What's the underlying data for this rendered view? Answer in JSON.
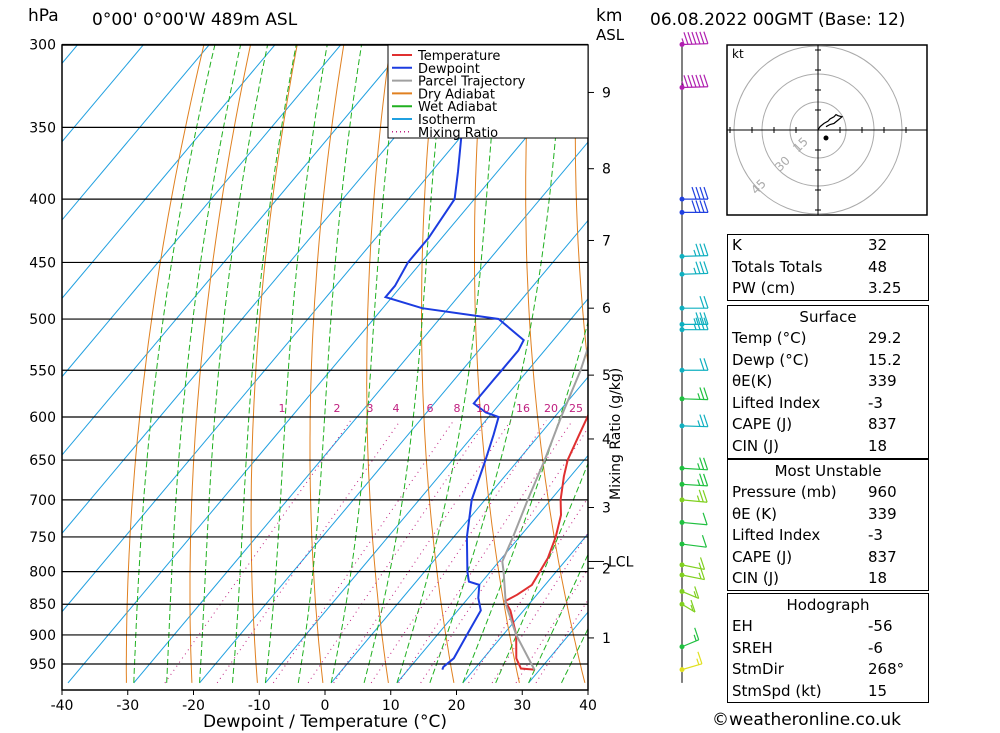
{
  "header": {
    "unit_hpa": "hPa",
    "location": "0°00' 0°00'W 489m ASL",
    "unit_km": "km",
    "unit_asl": "ASL",
    "datetime": "06.08.2022 00GMT (Base: 12)"
  },
  "chart_data": {
    "type": "line",
    "xlabel": "Dewpoint / Temperature (°C)",
    "ylabel": "",
    "mixing_ratio_label": "Mixing Ratio (g/kg)",
    "x_ticks": [
      "-40",
      "-30",
      "-20",
      "-10",
      "0",
      "10",
      "20",
      "30",
      "40"
    ],
    "pressure_levels": [
      300,
      350,
      400,
      450,
      500,
      550,
      600,
      650,
      700,
      750,
      800,
      850,
      900,
      950
    ],
    "km_ticks": [
      {
        "km": "1",
        "p": 905
      },
      {
        "km": "2",
        "p": 795
      },
      {
        "km": "3",
        "p": 710
      },
      {
        "km": "4",
        "p": 625
      },
      {
        "km": "5",
        "p": 555
      },
      {
        "km": "6",
        "p": 490
      },
      {
        "km": "7",
        "p": 432
      },
      {
        "km": "8",
        "p": 378
      },
      {
        "km": "9",
        "p": 328
      }
    ],
    "lcl": {
      "label": "LCL",
      "p": 785
    },
    "mixing_ratio_values": [
      "1",
      "2",
      "3",
      "4",
      "6",
      "8",
      "10",
      "16",
      "20",
      "25"
    ],
    "legend": [
      "Temperature",
      "Dewpoint",
      "Parcel Trajectory",
      "Dry Adiabat",
      "Wet Adiabat",
      "Isotherm",
      "Mixing Ratio"
    ],
    "series": [
      {
        "name": "Temperature",
        "color": "#e03030",
        "points": [
          [
            960,
            29.2
          ],
          [
            958,
            27
          ],
          [
            940,
            25
          ],
          [
            900,
            22
          ],
          [
            860,
            18
          ],
          [
            845,
            16
          ],
          [
            835,
            17
          ],
          [
            820,
            18
          ],
          [
            800,
            17.5
          ],
          [
            780,
            17
          ],
          [
            750,
            15.5
          ],
          [
            720,
            13.5
          ],
          [
            700,
            11.5
          ],
          [
            670,
            9
          ],
          [
            650,
            7.5
          ],
          [
            620,
            6
          ],
          [
            600,
            5
          ],
          [
            580,
            4
          ],
          [
            550,
            1.5
          ],
          [
            520,
            -1
          ],
          [
            500,
            -4
          ],
          [
            480,
            -3.5
          ],
          [
            460,
            -5.5
          ],
          [
            440,
            -8
          ],
          [
            420,
            -10.5
          ],
          [
            400,
            -13
          ],
          [
            380,
            -15
          ],
          [
            360,
            -17
          ],
          [
            340,
            -22
          ],
          [
            320,
            -26
          ],
          [
            310,
            -29
          ],
          [
            300,
            -31
          ]
        ]
      },
      {
        "name": "Dewpoint",
        "color": "#1c3ce0",
        "points": [
          [
            960,
            15.2
          ],
          [
            955,
            15
          ],
          [
            940,
            15.5
          ],
          [
            900,
            14.5
          ],
          [
            860,
            13.5
          ],
          [
            840,
            11.5
          ],
          [
            820,
            10
          ],
          [
            815,
            8
          ],
          [
            800,
            6.5
          ],
          [
            750,
            2
          ],
          [
            700,
            -2
          ],
          [
            650,
            -5
          ],
          [
            620,
            -7
          ],
          [
            600,
            -8.5
          ],
          [
            595,
            -11
          ],
          [
            585,
            -14
          ],
          [
            560,
            -14
          ],
          [
            550,
            -14
          ],
          [
            530,
            -14
          ],
          [
            520,
            -14.5
          ],
          [
            500,
            -21
          ],
          [
            490,
            -34
          ],
          [
            480,
            -41
          ],
          [
            470,
            -41
          ],
          [
            450,
            -42
          ],
          [
            430,
            -42
          ],
          [
            400,
            -43
          ],
          [
            380,
            -46
          ],
          [
            350,
            -51
          ],
          [
            330,
            -56
          ],
          [
            318,
            -60
          ],
          [
            314,
            -63
          ],
          [
            312,
            -66
          ],
          [
            312,
            -69
          ],
          [
            310,
            -66
          ],
          [
            308,
            -64
          ],
          [
            300,
            -64
          ]
        ]
      },
      {
        "name": "Parcel Trajectory",
        "color": "#a0a0a0",
        "points": [
          [
            960,
            29.2
          ],
          [
            900,
            22
          ],
          [
            850,
            16.5
          ],
          [
            800,
            12
          ],
          [
            785,
            10.5
          ],
          [
            750,
            9
          ],
          [
            700,
            6.5
          ],
          [
            650,
            4
          ],
          [
            600,
            1
          ],
          [
            550,
            -2
          ],
          [
            500,
            -6
          ],
          [
            450,
            -11
          ],
          [
            400,
            -16.5
          ],
          [
            350,
            -23.5
          ],
          [
            300,
            -32
          ]
        ]
      }
    ],
    "winds": [
      {
        "p": 300,
        "dir": 265,
        "spd": 55,
        "color": "#b020b0"
      },
      {
        "p": 325,
        "dir": 265,
        "spd": 55,
        "color": "#b020b0"
      },
      {
        "p": 400,
        "dir": 270,
        "spd": 40,
        "color": "#2040e0"
      },
      {
        "p": 410,
        "dir": 270,
        "spd": 40,
        "color": "#2040e0"
      },
      {
        "p": 445,
        "dir": 265,
        "spd": 25,
        "color": "#10b0c0"
      },
      {
        "p": 460,
        "dir": 265,
        "spd": 25,
        "color": "#10b0c0"
      },
      {
        "p": 490,
        "dir": 270,
        "spd": 20,
        "color": "#10b0c0"
      },
      {
        "p": 505,
        "dir": 270,
        "spd": 25,
        "color": "#10b0c0"
      },
      {
        "p": 510,
        "dir": 270,
        "spd": 25,
        "color": "#10b0c0"
      },
      {
        "p": 550,
        "dir": 270,
        "spd": 20,
        "color": "#10b0c0"
      },
      {
        "p": 580,
        "dir": 275,
        "spd": 15,
        "color": "#20c040"
      },
      {
        "p": 610,
        "dir": 275,
        "spd": 15,
        "color": "#10b0c0"
      },
      {
        "p": 660,
        "dir": 280,
        "spd": 15,
        "color": "#20c040"
      },
      {
        "p": 680,
        "dir": 280,
        "spd": 15,
        "color": "#20c040"
      },
      {
        "p": 700,
        "dir": 285,
        "spd": 15,
        "color": "#80d020"
      },
      {
        "p": 730,
        "dir": 285,
        "spd": 10,
        "color": "#20c040"
      },
      {
        "p": 760,
        "dir": 290,
        "spd": 10,
        "color": "#20c040"
      },
      {
        "p": 790,
        "dir": 300,
        "spd": 5,
        "color": "#80d020"
      },
      {
        "p": 805,
        "dir": 300,
        "spd": 5,
        "color": "#80d020"
      },
      {
        "p": 830,
        "dir": 320,
        "spd": 5,
        "color": "#80d020"
      },
      {
        "p": 850,
        "dir": 330,
        "spd": 5,
        "color": "#80d020"
      },
      {
        "p": 920,
        "dir": 220,
        "spd": 5,
        "color": "#20c040"
      },
      {
        "p": 960,
        "dir": 230,
        "spd": 5,
        "color": "#e0e020"
      }
    ]
  },
  "hodograph": {
    "unit": "kt",
    "ring_labels": [
      "15",
      "30",
      "45"
    ],
    "points": [
      [
        0,
        0
      ],
      [
        1,
        3
      ],
      [
        3,
        6
      ],
      [
        5,
        8
      ],
      [
        6,
        10
      ],
      [
        8,
        12
      ],
      [
        9,
        14
      ],
      [
        10,
        13
      ],
      [
        12,
        12
      ],
      [
        10,
        9
      ],
      [
        8,
        6
      ],
      [
        6,
        5
      ],
      [
        4,
        3
      ]
    ]
  },
  "indices": [
    {
      "label": "K",
      "value": "32"
    },
    {
      "label": "Totals Totals",
      "value": "48"
    },
    {
      "label": "PW (cm)",
      "value": "3.25"
    }
  ],
  "surface": {
    "title": "Surface",
    "rows": [
      {
        "label": "Temp (°C)",
        "value": "29.2"
      },
      {
        "label": "Dewp (°C)",
        "value": "15.2"
      },
      {
        "label": "θE(K)",
        "value": "339"
      },
      {
        "label": "Lifted Index",
        "value": "-3"
      },
      {
        "label": "CAPE (J)",
        "value": "837"
      },
      {
        "label": "CIN (J)",
        "value": "18"
      }
    ]
  },
  "most_unstable": {
    "title": "Most Unstable",
    "rows": [
      {
        "label": "Pressure (mb)",
        "value": "960"
      },
      {
        "label": "θE (K)",
        "value": "339"
      },
      {
        "label": "Lifted Index",
        "value": "-3"
      },
      {
        "label": "CAPE (J)",
        "value": "837"
      },
      {
        "label": "CIN (J)",
        "value": "18"
      }
    ]
  },
  "hodograph_table": {
    "title": "Hodograph",
    "rows": [
      {
        "label": "EH",
        "value": "-56"
      },
      {
        "label": "SREH",
        "value": "-6"
      },
      {
        "label": "StmDir",
        "value": "268°"
      },
      {
        "label": "StmSpd (kt)",
        "value": "15"
      }
    ]
  },
  "copyright": "©weatheronline.co.uk",
  "colors": {
    "temperature": "#e03030",
    "dewpoint": "#1c3ce0",
    "parcel": "#a0a0a0",
    "dry_adiabat": "#e08020",
    "wet_adiabat": "#20b020",
    "isotherm": "#20a0e0",
    "mixing_ratio": "#c02080"
  }
}
